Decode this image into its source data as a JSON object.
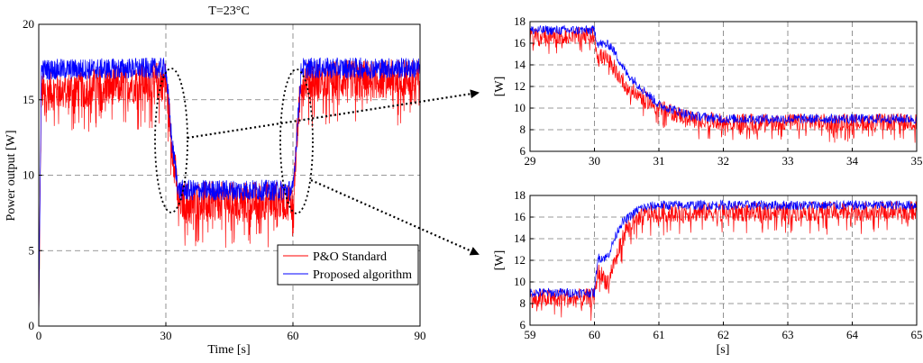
{
  "chart_data": [
    {
      "id": "main",
      "type": "line",
      "title": "T=23°C",
      "xlabel": "Time [s]",
      "ylabel": "Power output [W]",
      "xlim": [
        0,
        90
      ],
      "ylim": [
        0,
        20
      ],
      "xticks": [
        0,
        30,
        60,
        90
      ],
      "yticks": [
        0,
        5,
        10,
        15,
        20
      ],
      "grid": true,
      "legend_position": "bottom-right",
      "series": [
        {
          "name": "P&O Standard",
          "color": "#ff0000",
          "profile": [
            [
              0,
              0
            ],
            [
              0.6,
              15.5
            ],
            [
              30,
              16.3
            ],
            [
              31.5,
              12
            ],
            [
              33,
              8.3
            ],
            [
              60,
              8.3
            ],
            [
              61,
              13
            ],
            [
              62,
              16.3
            ],
            [
              90,
              16.4
            ]
          ],
          "noise": 1.3
        },
        {
          "name": "Proposed algorithm",
          "color": "#0000ff",
          "profile": [
            [
              0,
              0
            ],
            [
              0.6,
              17
            ],
            [
              30,
              17.1
            ],
            [
              31.5,
              12
            ],
            [
              33,
              9
            ],
            [
              60,
              9
            ],
            [
              61,
              13
            ],
            [
              62,
              17.1
            ],
            [
              90,
              17.1
            ]
          ],
          "noise": 0.7
        }
      ]
    },
    {
      "id": "zoom-top",
      "type": "line",
      "xlabel": "",
      "ylabel": "[W]",
      "xlim": [
        29,
        35
      ],
      "ylim": [
        6,
        18
      ],
      "xticks": [
        29,
        30,
        31,
        32,
        33,
        34,
        35
      ],
      "yticks": [
        6,
        8,
        10,
        12,
        14,
        16,
        18
      ],
      "grid": true,
      "series": [
        {
          "name": "P&O Standard",
          "color": "#ff0000",
          "profile": [
            [
              29,
              16.7
            ],
            [
              30,
              16.7
            ],
            [
              30.05,
              14.8
            ],
            [
              30.2,
              14.6
            ],
            [
              30.5,
              12
            ],
            [
              31,
              10
            ],
            [
              31.5,
              9
            ],
            [
              32,
              8.7
            ],
            [
              35,
              8.7
            ]
          ],
          "noise": 0.8
        },
        {
          "name": "Proposed algorithm",
          "color": "#0000ff",
          "profile": [
            [
              29,
              17.2
            ],
            [
              30,
              17.2
            ],
            [
              30.05,
              16
            ],
            [
              30.25,
              15.8
            ],
            [
              30.5,
              13.2
            ],
            [
              31,
              10.3
            ],
            [
              31.5,
              9.3
            ],
            [
              32,
              9
            ],
            [
              35,
              9
            ]
          ],
          "noise": 0.45
        }
      ]
    },
    {
      "id": "zoom-bottom",
      "type": "line",
      "xlabel": "[s]",
      "ylabel": "[W]",
      "xlim": [
        59,
        65
      ],
      "ylim": [
        6,
        18
      ],
      "xticks": [
        59,
        60,
        61,
        62,
        63,
        64,
        65
      ],
      "yticks": [
        6,
        8,
        10,
        12,
        14,
        16,
        18
      ],
      "grid": true,
      "series": [
        {
          "name": "P&O Standard",
          "color": "#ff0000",
          "profile": [
            [
              59,
              8.5
            ],
            [
              60,
              8.5
            ],
            [
              60.05,
              11
            ],
            [
              60.2,
              10
            ],
            [
              60.5,
              15
            ],
            [
              60.8,
              16.2
            ],
            [
              61,
              16.4
            ],
            [
              65,
              16.6
            ]
          ],
          "noise": 0.9
        },
        {
          "name": "Proposed algorithm",
          "color": "#0000ff",
          "profile": [
            [
              59,
              9
            ],
            [
              60,
              9
            ],
            [
              60.05,
              12.2
            ],
            [
              60.2,
              12.3
            ],
            [
              60.4,
              15.3
            ],
            [
              60.7,
              16.8
            ],
            [
              61,
              17.1
            ],
            [
              65,
              17.1
            ]
          ],
          "noise": 0.45
        }
      ]
    }
  ],
  "annotations": {
    "callout": "ellipses on the main plot with dotted arrows pointing to the zoomed panels"
  }
}
